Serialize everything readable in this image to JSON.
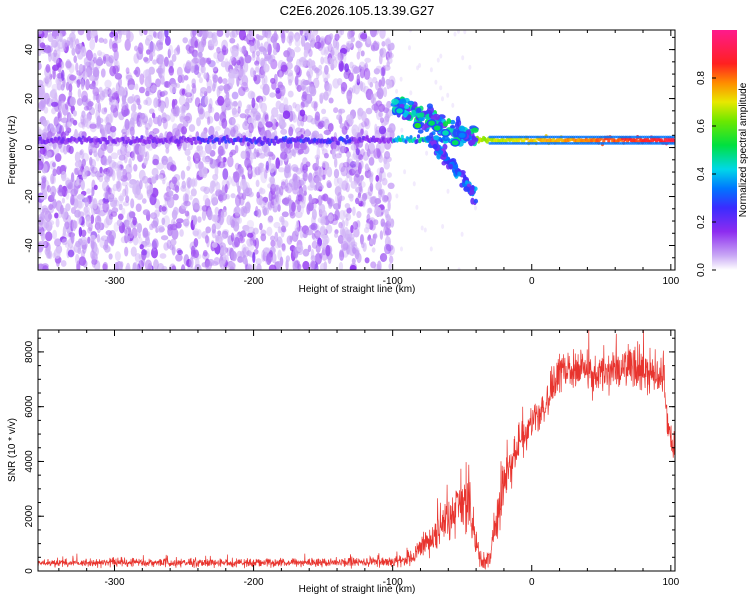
{
  "title": "C2E6.2026.105.13.39.G27",
  "colors": {
    "snr_line": "#e8342e",
    "spec_low": "#7b2ff0",
    "spec_main": "#5a10e0"
  },
  "chart_data": [
    {
      "type": "heatmap",
      "xlabel": "Height of straight line (km)",
      "ylabel": "Frequency (Hz)",
      "xlim": [
        -355,
        103
      ],
      "ylim": [
        -50,
        48
      ],
      "xticks": [
        -300,
        -200,
        -100,
        0,
        100
      ],
      "yticks": [
        -40,
        -20,
        0,
        20,
        40
      ],
      "colorbar": {
        "label": "Normalized spectral amplitude",
        "range": [
          0,
          1
        ],
        "ticks": [
          "0.0",
          "0.2",
          "0.4",
          "0.6",
          "0.8"
        ],
        "colormap": "white-purple-blue-cyan-green-yellow-red-magenta"
      },
      "features": [
        {
          "name": "noise floor",
          "x_range": [
            -355,
            -100
          ],
          "y_range": [
            -50,
            48
          ],
          "amplitude": 0.05
        },
        {
          "name": "carrier line",
          "x_range": [
            -355,
            103
          ],
          "frequency": 3,
          "amplitude_start": 0.1,
          "amplitude_end": 0.85
        },
        {
          "name": "upper branch",
          "x": [
            -100,
            -40
          ],
          "frequency": [
            18,
            3
          ]
        },
        {
          "name": "lower branch",
          "x": [
            -75,
            -40
          ],
          "frequency": [
            5,
            -20
          ]
        }
      ]
    },
    {
      "type": "line",
      "xlabel": "Height of straight line (km)",
      "ylabel": "SNR (10 * v/v)",
      "xlim": [
        -355,
        103
      ],
      "ylim": [
        0,
        8800
      ],
      "xticks": [
        -300,
        -200,
        -100,
        0,
        100
      ],
      "yticks": [
        0,
        2000,
        4000,
        6000,
        8000
      ],
      "envelope": {
        "x": [
          -355,
          -300,
          -200,
          -120,
          -100,
          -85,
          -75,
          -60,
          -50,
          -45,
          -40,
          -35,
          -30,
          -25,
          -20,
          -10,
          0,
          10,
          20,
          30,
          50,
          70,
          85,
          95,
          98,
          103
        ],
        "mean": [
          300,
          300,
          300,
          320,
          350,
          500,
          1000,
          1800,
          2700,
          2200,
          1000,
          200,
          500,
          1800,
          3200,
          4500,
          5400,
          6000,
          7200,
          7400,
          7200,
          7400,
          7200,
          7000,
          5200,
          4400
        ],
        "spread": [
          120,
          130,
          140,
          160,
          200,
          300,
          500,
          700,
          1000,
          1200,
          600,
          300,
          400,
          700,
          900,
          800,
          700,
          600,
          600,
          600,
          600,
          700,
          800,
          700,
          700,
          600
        ]
      }
    }
  ]
}
